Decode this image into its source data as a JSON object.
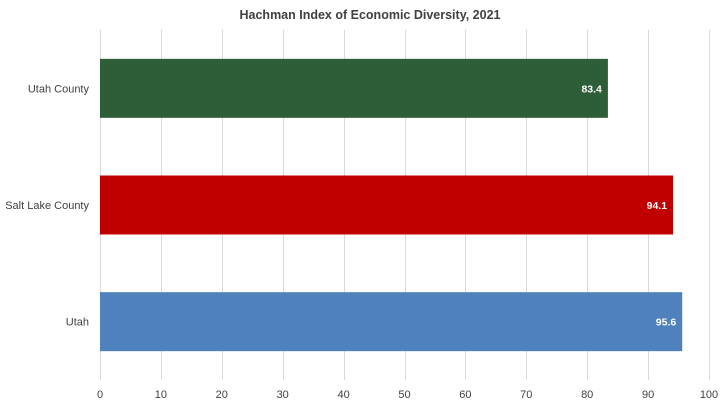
{
  "chart_data": {
    "type": "bar",
    "orientation": "horizontal",
    "title": "Hachman Index of Economic Diversity, 2021",
    "xlabel": "",
    "ylabel": "",
    "categories": [
      "Utah County",
      "Salt Lake County",
      "Utah"
    ],
    "values": [
      83.4,
      94.1,
      95.6
    ],
    "data_labels": [
      "83.4",
      "94.1",
      "95.6"
    ],
    "colors": [
      "#2e5e38",
      "#c00000",
      "#4f81bd"
    ],
    "xlim": [
      0,
      100
    ],
    "x_ticks": [
      "0",
      "10",
      "20",
      "30",
      "40",
      "50",
      "60",
      "70",
      "80",
      "90",
      "100"
    ],
    "grid": "vertical",
    "legend": "none"
  }
}
